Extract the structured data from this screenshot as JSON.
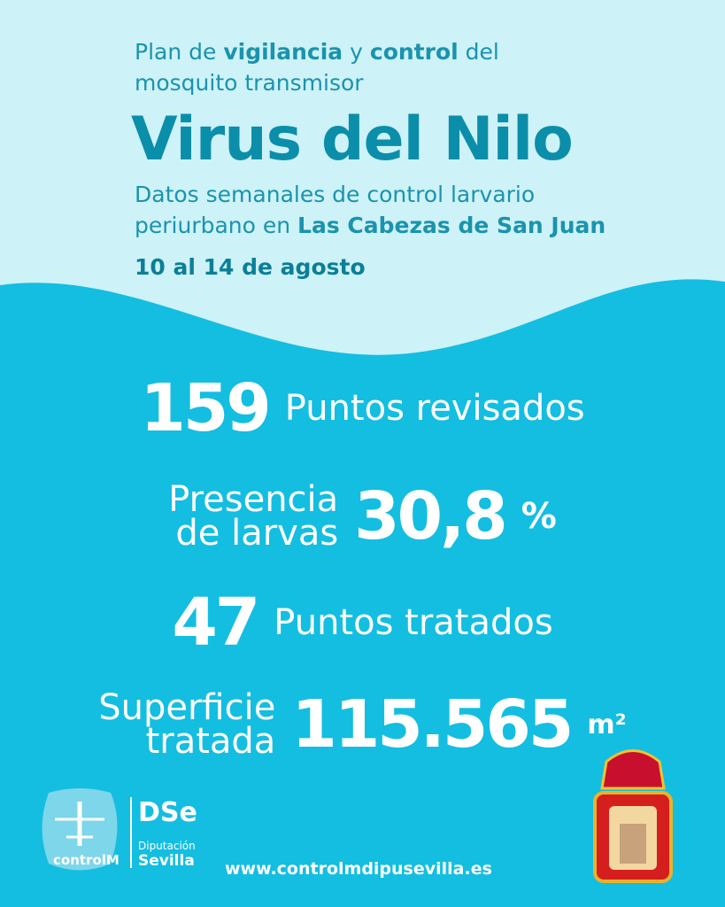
{
  "header": {
    "intro": [
      [
        "Plan de ",
        "vigilancia",
        " y ",
        "control",
        " del"
      ],
      [
        "mosquito transmisor"
      ]
    ],
    "title": "Virus del Nilo",
    "subtitle": [
      [
        "Datos semanales de control larvario"
      ],
      [
        "periurbano en ",
        "Las Cabezas de San Juan"
      ]
    ],
    "dates": "10 al 14 de agosto"
  },
  "stats": [
    {
      "value": "159",
      "label": [
        "Puntos revisados"
      ]
    },
    {
      "label": [
        "Presencia",
        "de larvas"
      ],
      "value": "30,8",
      "unit": "%"
    },
    {
      "value": "47",
      "label": [
        "Puntos tratados"
      ]
    },
    {
      "label": [
        "Superficie",
        "tratada"
      ],
      "value": "115.565",
      "unit": "m²"
    }
  ],
  "footer": {
    "logo_controlm": "controlM",
    "logo_dse": "DSe",
    "logo_dip_small": "Diputación",
    "logo_dip": "Sevilla",
    "url": "www.controlmdipusevilla.es"
  }
}
